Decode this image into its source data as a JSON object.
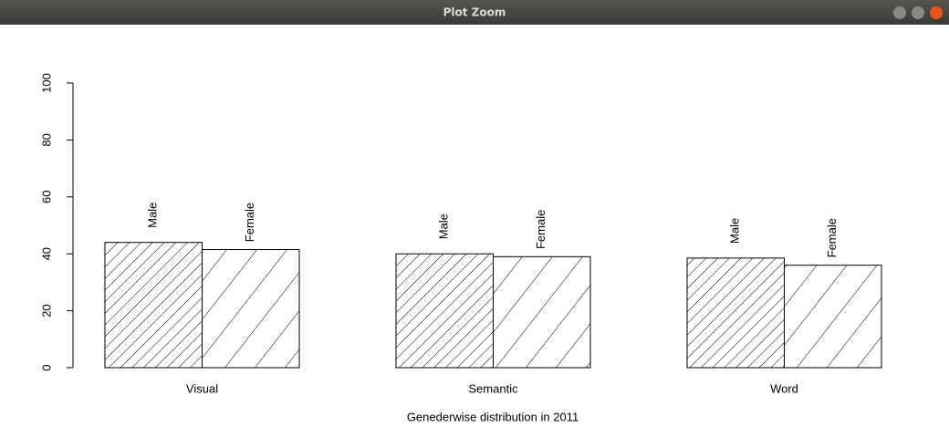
{
  "window_title": "Plot Zoom",
  "chart_data": {
    "type": "bar",
    "xlabel": "Genederwise distribution in 2011",
    "categories": [
      "Visual",
      "Semantic",
      "Word"
    ],
    "series": [
      {
        "name": "Male",
        "color": "#000000",
        "values": [
          44,
          40,
          38.5
        ]
      },
      {
        "name": "Female",
        "color": "#000000",
        "values": [
          41.5,
          39,
          36
        ]
      }
    ],
    "ylim": [
      0,
      100
    ],
    "yticks": [
      0,
      20,
      40,
      60,
      80,
      100
    ]
  }
}
